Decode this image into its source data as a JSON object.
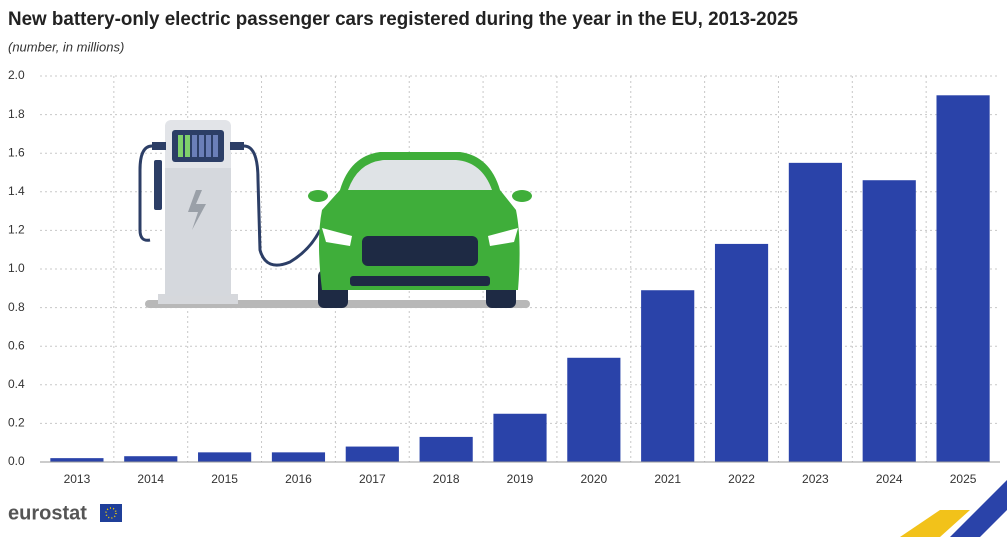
{
  "chart_data": {
    "type": "bar",
    "title": "New battery-only electric passenger cars registered during the year in the EU, 2013-2025",
    "subtitle": "(number, in millions)",
    "logo": "eurostat",
    "categories": [
      "2013",
      "2014",
      "2015",
      "2016",
      "2017",
      "2018",
      "2019",
      "2020",
      "2021",
      "2022",
      "2023",
      "2024",
      "2025"
    ],
    "values": [
      0.02,
      0.03,
      0.05,
      0.05,
      0.08,
      0.13,
      0.25,
      0.54,
      0.89,
      1.13,
      1.55,
      1.46,
      1.9
    ],
    "color": "#2a43a9",
    "ylim": [
      0,
      2
    ],
    "yticks": [
      {
        "value": 0,
        "label": "0.0"
      },
      0.2,
      0.4,
      0.6,
      0.8,
      {
        "value": 1,
        "label": "1.0"
      },
      1.2,
      1.4,
      1.6,
      1.8,
      {
        "value": 2,
        "label": "2.0"
      }
    ],
    "grid": true
  }
}
